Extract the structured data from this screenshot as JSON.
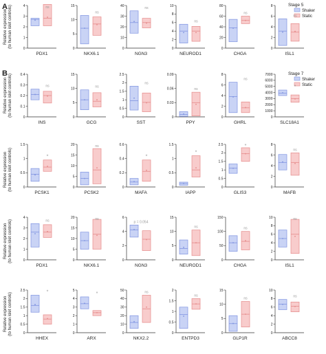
{
  "figure": {
    "ylabel": "Relative expression\n(to human islet controls)",
    "colors": {
      "shaker_fill": "#c9d3f5",
      "shaker_stroke": "#7f93e0",
      "static_fill": "#f8cccc",
      "static_stroke": "#e58a8a",
      "axis": "#333333"
    }
  },
  "panels": [
    {
      "letter": "A",
      "stage": "Stage 5",
      "legend": [
        "Shaker",
        "Static"
      ]
    },
    {
      "letter": "B",
      "stage": "Stage 7",
      "legend": [
        "Shaker",
        "Static"
      ]
    }
  ],
  "chart_data": [
    {
      "type": "box",
      "panel": "A",
      "gene": "PDX1",
      "ylim": [
        0,
        4
      ],
      "yticks": [
        0,
        1,
        2,
        3,
        4
      ],
      "sig": "ns",
      "shaker": [
        2.1,
        2.5,
        2.7,
        2.75,
        2.8
      ],
      "static": [
        2.1,
        2.5,
        2.8,
        3.3,
        4.1
      ]
    },
    {
      "type": "box",
      "panel": "A",
      "gene": "NKX6.1",
      "ylim": [
        0,
        15
      ],
      "yticks": [
        0,
        5,
        10,
        15
      ],
      "sig": "ns",
      "shaker": [
        1.5,
        3.5,
        7,
        10.5,
        11.5
      ],
      "static": [
        4.5,
        6.5,
        8.5,
        10,
        11
      ]
    },
    {
      "type": "box",
      "panel": "A",
      "gene": "NGN3",
      "ylim": [
        0,
        40
      ],
      "yticks": [
        0,
        10,
        20,
        30,
        40
      ],
      "sig": "ns",
      "shaker": [
        14,
        17,
        24,
        33,
        35
      ],
      "static": [
        19,
        21,
        24,
        26,
        28
      ]
    },
    {
      "type": "box",
      "panel": "A",
      "gene": "NEUROD1",
      "ylim": [
        0,
        10
      ],
      "yticks": [
        0,
        2,
        4,
        6,
        8,
        10
      ],
      "sig": "ns",
      "shaker": [
        1.2,
        2,
        4,
        5.3,
        5.6
      ],
      "static": [
        1.6,
        2.5,
        4,
        4.8,
        5.1
      ]
    },
    {
      "type": "box",
      "panel": "A",
      "gene": "CHGA",
      "ylim": [
        0,
        80
      ],
      "yticks": [
        0,
        20,
        40,
        60,
        80
      ],
      "sig": "ns",
      "shaker": [
        12,
        25,
        38,
        50,
        54
      ],
      "static": [
        46,
        49,
        52,
        55,
        60
      ]
    },
    {
      "type": "box",
      "panel": "A",
      "gene": "ISL1",
      "ylim": [
        0,
        8
      ],
      "yticks": [
        0,
        2,
        4,
        6,
        8
      ],
      "sig": "ns",
      "shaker": [
        0.5,
        1,
        3.2,
        5,
        5.5
      ],
      "static": [
        1.3,
        2,
        3,
        4.3,
        4.6
      ]
    },
    {
      "type": "box",
      "panel": "B",
      "gene": "INS",
      "ylim": [
        0,
        0.4
      ],
      "yticks": [
        0,
        0.1,
        0.2,
        0.3,
        0.4
      ],
      "sig": "ns",
      "shaker": [
        0.16,
        0.18,
        0.21,
        0.24,
        0.26
      ],
      "static": [
        0.13,
        0.16,
        0.2,
        0.23,
        0.24
      ]
    },
    {
      "type": "box",
      "panel": "B",
      "gene": "GCG",
      "ylim": [
        0,
        15
      ],
      "yticks": [
        0,
        5,
        10,
        15
      ],
      "sig": "ns",
      "shaker": [
        2.5,
        3.5,
        6,
        8.5,
        9.5
      ],
      "static": [
        3.5,
        4.5,
        5.5,
        7.5,
        8.5
      ]
    },
    {
      "type": "box",
      "panel": "B",
      "gene": "SST",
      "ylim": [
        0,
        2.5
      ],
      "yticks": [
        0,
        0.5,
        1,
        1.5,
        2,
        2.5
      ],
      "sig": "ns",
      "shaker": [
        0.4,
        0.6,
        0.95,
        1.6,
        1.8
      ],
      "static": [
        0.3,
        0.45,
        0.85,
        1.2,
        1.4
      ]
    },
    {
      "type": "box",
      "panel": "B",
      "gene": "PPY",
      "ylim": [
        0,
        0.09
      ],
      "yticks": [
        0,
        0.03,
        0.06,
        0.09
      ],
      "sig": "ns",
      "shaker": [
        0.001,
        0.003,
        0.005,
        0.009,
        0.011
      ],
      "static": [
        0.002,
        0.005,
        0.03,
        0.048,
        0.052
      ]
    },
    {
      "type": "box",
      "panel": "B",
      "gene": "GHRL",
      "ylim": [
        0,
        8
      ],
      "yticks": [
        0,
        2,
        4,
        6,
        8
      ],
      "sig": "ns",
      "shaker": [
        0.8,
        1.5,
        3.8,
        6,
        6.5
      ],
      "static": [
        0.8,
        1.2,
        1.7,
        2.3,
        2.8
      ]
    },
    {
      "type": "box",
      "panel": "B",
      "gene": "SLC18A1",
      "ylim": [
        0,
        7000
      ],
      "yticks": [
        0,
        1000,
        2000,
        3000,
        4000,
        5000,
        6000,
        7000
      ],
      "sig": "*",
      "shaker": [
        3500,
        3700,
        3900,
        4200,
        4400
      ],
      "static": [
        2400,
        2600,
        3000,
        3300,
        3600
      ]
    },
    {
      "type": "box",
      "panel": "B",
      "gene": "PCSK1",
      "ylim": [
        0,
        1.5
      ],
      "yticks": [
        0,
        0.5,
        1,
        1.5
      ],
      "sig": "*",
      "shaker": [
        0.2,
        0.3,
        0.45,
        0.55,
        0.65
      ],
      "static": [
        0.55,
        0.6,
        0.7,
        0.85,
        0.95
      ]
    },
    {
      "type": "box",
      "panel": "B",
      "gene": "PCSK2",
      "ylim": [
        0,
        20
      ],
      "yticks": [
        0,
        5,
        10,
        15,
        20
      ],
      "sig": "ns",
      "shaker": [
        1,
        2,
        4,
        6,
        7
      ],
      "static": [
        1.5,
        3,
        8,
        15,
        18
      ]
    },
    {
      "type": "box",
      "panel": "B",
      "gene": "MAFA",
      "ylim": [
        0,
        0.6
      ],
      "yticks": [
        0,
        0.2,
        0.4,
        0.6
      ],
      "sig": "*",
      "shaker": [
        0.03,
        0.05,
        0.07,
        0.1,
        0.12
      ],
      "static": [
        0.08,
        0.15,
        0.22,
        0.32,
        0.38
      ]
    },
    {
      "type": "box",
      "panel": "B",
      "gene": "IAPP",
      "ylim": [
        0,
        1.5
      ],
      "yticks": [
        0,
        0.5,
        1,
        1.5
      ],
      "sig": "*",
      "shaker": [
        0.06,
        0.09,
        0.12,
        0.15,
        0.17
      ],
      "static": [
        0.35,
        0.45,
        0.6,
        0.9,
        1.1
      ]
    },
    {
      "type": "box",
      "panel": "B",
      "gene": "GLIS3",
      "ylim": [
        0,
        2.5
      ],
      "yticks": [
        0,
        0.5,
        1,
        1.5,
        2,
        2.5
      ],
      "sig": "*",
      "shaker": [
        0.8,
        0.95,
        1.1,
        1.25,
        1.35
      ],
      "static": [
        1.5,
        1.7,
        1.95,
        2.2,
        2.3
      ]
    },
    {
      "type": "box",
      "panel": "B",
      "gene": "MAFB",
      "ylim": [
        0,
        8
      ],
      "yticks": [
        0,
        2,
        4,
        6,
        8
      ],
      "sig": "ns",
      "shaker": [
        3.2,
        3.8,
        4.6,
        5.6,
        6.1
      ],
      "static": [
        2.2,
        3.2,
        4.6,
        5.6,
        6.4
      ]
    },
    {
      "type": "box",
      "panel": "B",
      "gene": "PDX1",
      "ylim": [
        0,
        4
      ],
      "yticks": [
        0,
        1,
        2,
        3,
        4
      ],
      "sig": "ns",
      "shaker": [
        1.2,
        1.7,
        2.6,
        3.2,
        3.4
      ],
      "static": [
        2.1,
        2.3,
        2.6,
        3,
        3.3
      ]
    },
    {
      "type": "box",
      "panel": "B",
      "gene": "NKX6.1",
      "ylim": [
        0,
        20
      ],
      "yticks": [
        0,
        5,
        10,
        15,
        20
      ],
      "sig": "ns",
      "shaker": [
        5,
        7,
        9,
        11,
        13
      ],
      "static": [
        5,
        7,
        12,
        16,
        19
      ]
    },
    {
      "type": "box",
      "panel": "B",
      "gene": "NGN3",
      "ylim": [
        0,
        6
      ],
      "yticks": [
        0,
        2,
        4,
        6
      ],
      "sig": "p = 0.054",
      "shaker": [
        3.2,
        3.8,
        4.2,
        4.7,
        4.9
      ],
      "static": [
        1.3,
        2,
        2.9,
        3.7,
        4.1
      ]
    },
    {
      "type": "box",
      "panel": "B",
      "gene": "NEUROD1",
      "ylim": [
        0,
        15
      ],
      "yticks": [
        0,
        5,
        10,
        15
      ],
      "sig": "ns",
      "shaker": [
        2,
        2.8,
        4,
        6,
        7
      ],
      "static": [
        1.5,
        3,
        6,
        9,
        10.5
      ]
    },
    {
      "type": "box",
      "panel": "B",
      "gene": "CHGA",
      "ylim": [
        0,
        150
      ],
      "yticks": [
        0,
        50,
        100,
        150
      ],
      "sig": "ns",
      "shaker": [
        30,
        45,
        60,
        75,
        85
      ],
      "static": [
        35,
        50,
        65,
        85,
        100
      ]
    },
    {
      "type": "box",
      "panel": "B",
      "gene": "ISL1",
      "ylim": [
        0,
        10
      ],
      "yticks": [
        0,
        2,
        4,
        6,
        8,
        10
      ],
      "sig": "ns",
      "shaker": [
        3,
        3.8,
        5,
        6.2,
        7
      ],
      "static": [
        1.5,
        3,
        6,
        8,
        9.5
      ]
    },
    {
      "type": "box",
      "panel": "B",
      "gene": "HHEX",
      "ylim": [
        0,
        2.5
      ],
      "yticks": [
        0,
        0.5,
        1,
        1.5,
        2,
        2.5
      ],
      "sig": "*",
      "shaker": [
        1.2,
        1.4,
        1.6,
        1.9,
        2.2
      ],
      "static": [
        0.5,
        0.65,
        0.8,
        1,
        1.05
      ]
    },
    {
      "type": "box",
      "panel": "B",
      "gene": "ARX",
      "ylim": [
        0,
        5
      ],
      "yticks": [
        0,
        1,
        2,
        3,
        4,
        5
      ],
      "sig": "*",
      "shaker": [
        2.8,
        3.1,
        3.4,
        3.8,
        4.2
      ],
      "static": [
        2,
        2.2,
        2.35,
        2.5,
        2.6
      ]
    },
    {
      "type": "box",
      "panel": "B",
      "gene": "NKX2.2",
      "ylim": [
        0,
        50
      ],
      "yticks": [
        0,
        10,
        20,
        30,
        40,
        50
      ],
      "sig": "ns",
      "shaker": [
        5,
        8,
        12,
        18,
        20
      ],
      "static": [
        12,
        20,
        28,
        40,
        44
      ]
    },
    {
      "type": "box",
      "panel": "B",
      "gene": "ENTPD3",
      "ylim": [
        0,
        2
      ],
      "yticks": [
        0,
        0.5,
        1,
        1.5,
        2
      ],
      "sig": "ns",
      "shaker": [
        0.2,
        0.45,
        0.85,
        1.1,
        1.2
      ],
      "static": [
        1.1,
        1.2,
        1.35,
        1.5,
        1.6
      ]
    },
    {
      "type": "box",
      "panel": "B",
      "gene": "GLP1R",
      "ylim": [
        0,
        15
      ],
      "yticks": [
        0,
        5,
        10,
        15
      ],
      "sig": "ns",
      "shaker": [
        0.5,
        1.5,
        3.2,
        5,
        6
      ],
      "static": [
        2,
        3.5,
        6.5,
        9.5,
        11
      ]
    },
    {
      "type": "box",
      "panel": "B",
      "gene": "ABCC8",
      "ylim": [
        0,
        10
      ],
      "yticks": [
        0,
        2,
        4,
        6,
        8,
        10
      ],
      "sig": "ns",
      "shaker": [
        5.4,
        6,
        6.7,
        7.3,
        7.8
      ],
      "static": [
        4.9,
        5.5,
        6.2,
        6.8,
        7.2
      ]
    }
  ]
}
